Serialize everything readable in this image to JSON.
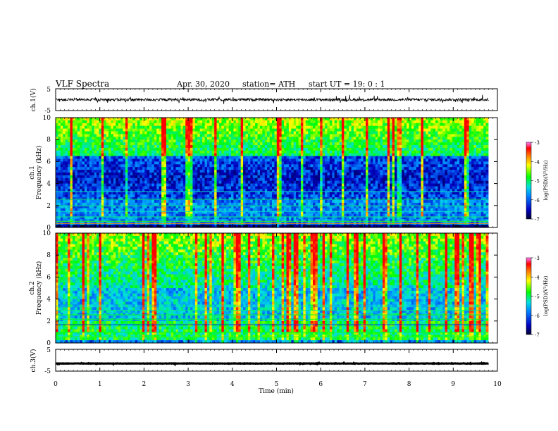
{
  "header": {
    "title": "VLF  Spectra",
    "date": "Apr. 30, 2020",
    "station": "station= ATH",
    "start": "start  UT  =    19: 0   : 1"
  },
  "colorbar_colors": [
    "#ff80ff",
    "#ff0000",
    "#ff8000",
    "#ffff00",
    "#00ff00",
    "#00e0e0",
    "#0080ff",
    "#0000c0",
    "#000030"
  ],
  "chart_data": [
    {
      "type": "line",
      "panel": "waveform",
      "ylabel": "ch.1(V)",
      "ylim": [
        -5,
        5
      ],
      "yticks": [
        "5",
        "-5"
      ],
      "xlim": [
        0,
        10
      ],
      "series": [
        {
          "values_range": [
            -0.8,
            0.8
          ],
          "color": "#000000"
        }
      ]
    },
    {
      "type": "heatmap",
      "panel": "spectrogram-ch1",
      "ylabel": "ch.1\nFrequency  (kHz)",
      "ylim": [
        0,
        10
      ],
      "yticks": [
        "0",
        "2",
        "4",
        "6",
        "8",
        "10"
      ],
      "xlim": [
        0,
        9.8
      ],
      "colorbar": {
        "label": "log(PSD)(V²/Hz)",
        "range": [
          -7,
          -3
        ],
        "ticks": [
          "-3",
          "-4",
          "-5",
          "-6",
          "-7"
        ]
      }
    },
    {
      "type": "heatmap",
      "panel": "spectrogram-ch2",
      "ylabel": "ch.2\nFrequency  (kHz)",
      "ylim": [
        0,
        10
      ],
      "yticks": [
        "0",
        "2",
        "4",
        "6",
        "8",
        "10"
      ],
      "xlim": [
        0,
        9.8
      ],
      "colorbar": {
        "label": "log(PSD)(V²/Hz)",
        "range": [
          -7,
          -3
        ],
        "ticks": [
          "-3",
          "-4",
          "-5",
          "-6",
          "-7"
        ]
      }
    },
    {
      "type": "line",
      "panel": "waveform",
      "ylabel": "ch.3(V)",
      "ylim": [
        -5,
        5
      ],
      "yticks": [
        "5",
        "-5"
      ],
      "xlim": [
        0,
        10
      ],
      "series": [
        {
          "values_range": [
            -1.8,
            -1.2
          ],
          "color": "#000000"
        }
      ]
    }
  ],
  "xaxis": {
    "label": "Time  (min)",
    "ticks": [
      "0",
      "1",
      "2",
      "3",
      "4",
      "5",
      "6",
      "7",
      "8",
      "9",
      "10"
    ],
    "range": [
      0,
      10
    ]
  }
}
